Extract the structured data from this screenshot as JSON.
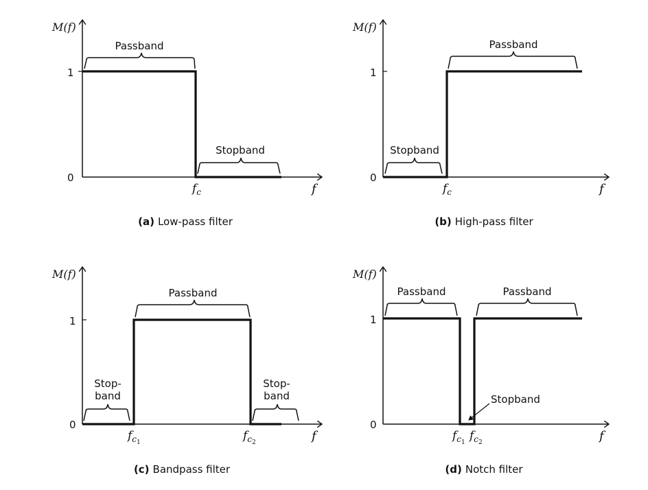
{
  "axes": {
    "y_label": "M(f)",
    "x_label": "f",
    "y_ticks": [
      "1",
      "0"
    ]
  },
  "panels": [
    {
      "id": "a",
      "caption_letter": "(a)",
      "caption_text": "Low-pass filter",
      "passband_labels": [
        "Passband"
      ],
      "stopband_labels": [
        "Stopband"
      ],
      "cutoff_labels": [
        {
          "main": "f",
          "sub": "c",
          "subsub": ""
        }
      ]
    },
    {
      "id": "b",
      "caption_letter": "(b)",
      "caption_text": "High-pass filter",
      "passband_labels": [
        "Passband"
      ],
      "stopband_labels": [
        "Stopband"
      ],
      "cutoff_labels": [
        {
          "main": "f",
          "sub": "c",
          "subsub": ""
        }
      ]
    },
    {
      "id": "c",
      "caption_letter": "(c)",
      "caption_text": "Bandpass filter",
      "passband_labels": [
        "Passband"
      ],
      "stopband_labels": [
        "Stop-\nband",
        "Stop-\nband"
      ],
      "cutoff_labels": [
        {
          "main": "f",
          "sub": "c",
          "subsub": "1"
        },
        {
          "main": "f",
          "sub": "c",
          "subsub": "2"
        }
      ]
    },
    {
      "id": "d",
      "caption_letter": "(d)",
      "caption_text": "Notch filter",
      "passband_labels": [
        "Passband",
        "Passband"
      ],
      "stopband_labels": [
        "Stopband"
      ],
      "cutoff_labels": [
        {
          "main": "f",
          "sub": "c",
          "subsub": "1"
        },
        {
          "main": "f",
          "sub": "c",
          "subsub": "2"
        }
      ]
    }
  ]
}
